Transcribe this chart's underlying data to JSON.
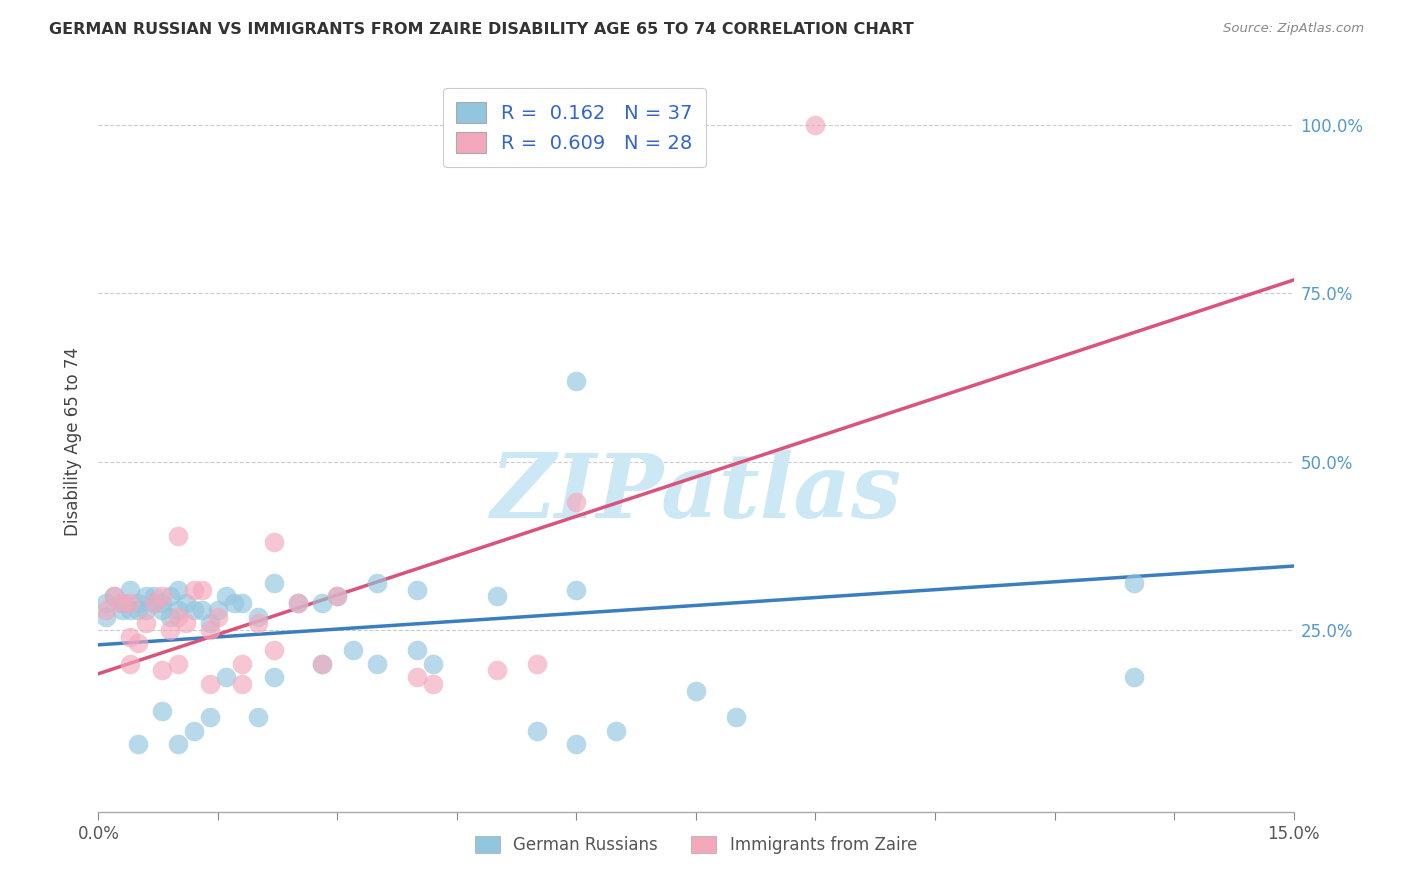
{
  "title": "GERMAN RUSSIAN VS IMMIGRANTS FROM ZAIRE DISABILITY AGE 65 TO 74 CORRELATION CHART",
  "source": "Source: ZipAtlas.com",
  "ylabel": "Disability Age 65 to 74",
  "xlim": [
    0.0,
    0.15
  ],
  "ylim": [
    -0.02,
    1.08
  ],
  "yticks": [
    0.0,
    0.25,
    0.5,
    0.75,
    1.0
  ],
  "ytick_labels": [
    "",
    "25.0%",
    "50.0%",
    "75.0%",
    "100.0%"
  ],
  "xticks": [
    0.0,
    0.015,
    0.03,
    0.045,
    0.06,
    0.075,
    0.09,
    0.105,
    0.12,
    0.135,
    0.15
  ],
  "legend_r_blue": "0.162",
  "legend_n_blue": "37",
  "legend_r_pink": "0.609",
  "legend_n_pink": "28",
  "color_blue": "#92c5de",
  "color_pink": "#f4a8bc",
  "line_color_blue": "#3a7ebf",
  "line_color_pink": "#d9537a",
  "watermark_color": "#cde8f5",
  "blue_scatter_x": [
    0.001,
    0.001,
    0.002,
    0.003,
    0.003,
    0.004,
    0.004,
    0.005,
    0.005,
    0.006,
    0.006,
    0.007,
    0.007,
    0.008,
    0.008,
    0.009,
    0.009,
    0.01,
    0.01,
    0.011,
    0.012,
    0.013,
    0.014,
    0.015,
    0.016,
    0.017,
    0.018,
    0.02,
    0.022,
    0.025,
    0.028,
    0.03,
    0.035,
    0.04,
    0.05,
    0.06,
    0.13
  ],
  "blue_scatter_y": [
    0.29,
    0.27,
    0.3,
    0.29,
    0.28,
    0.31,
    0.28,
    0.28,
    0.29,
    0.3,
    0.28,
    0.29,
    0.3,
    0.29,
    0.28,
    0.3,
    0.27,
    0.28,
    0.31,
    0.29,
    0.28,
    0.28,
    0.26,
    0.28,
    0.3,
    0.29,
    0.29,
    0.27,
    0.32,
    0.29,
    0.29,
    0.3,
    0.32,
    0.31,
    0.3,
    0.31,
    0.32
  ],
  "blue_low_x": [
    0.005,
    0.008,
    0.01,
    0.012,
    0.014,
    0.016,
    0.02,
    0.022,
    0.028,
    0.032,
    0.035,
    0.04,
    0.042,
    0.055,
    0.06,
    0.065,
    0.075,
    0.08,
    0.13
  ],
  "blue_low_y": [
    0.08,
    0.13,
    0.08,
    0.1,
    0.12,
    0.18,
    0.12,
    0.18,
    0.2,
    0.22,
    0.2,
    0.22,
    0.2,
    0.1,
    0.08,
    0.1,
    0.16,
    0.12,
    0.18
  ],
  "pink_scatter_x": [
    0.001,
    0.002,
    0.003,
    0.004,
    0.004,
    0.005,
    0.006,
    0.007,
    0.008,
    0.009,
    0.01,
    0.01,
    0.011,
    0.012,
    0.013,
    0.014,
    0.015,
    0.018,
    0.02,
    0.022,
    0.025,
    0.03,
    0.04,
    0.055,
    0.09
  ],
  "pink_scatter_y": [
    0.28,
    0.3,
    0.29,
    0.24,
    0.29,
    0.23,
    0.26,
    0.29,
    0.3,
    0.25,
    0.39,
    0.27,
    0.26,
    0.31,
    0.31,
    0.25,
    0.27,
    0.2,
    0.26,
    0.38,
    0.29,
    0.3,
    0.18,
    0.2,
    1.0
  ],
  "pink_low_x": [
    0.004,
    0.008,
    0.01,
    0.014,
    0.018,
    0.022,
    0.028,
    0.042,
    0.05,
    0.06
  ],
  "pink_low_y": [
    0.2,
    0.19,
    0.2,
    0.17,
    0.17,
    0.22,
    0.2,
    0.17,
    0.19,
    0.44
  ],
  "blue_single_high_x": [
    0.06
  ],
  "blue_single_high_y": [
    0.62
  ],
  "blue_line_x": [
    0.0,
    0.15
  ],
  "blue_line_y": [
    0.228,
    0.345
  ],
  "pink_line_x": [
    0.0,
    0.15
  ],
  "pink_line_y": [
    0.185,
    0.77
  ]
}
